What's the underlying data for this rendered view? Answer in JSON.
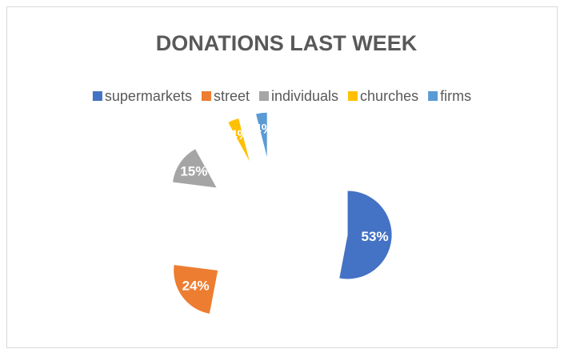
{
  "chart_data": {
    "type": "pie",
    "title": "DONATIONS LAST WEEK",
    "categories": [
      "supermarkets",
      "street",
      "individuals",
      "churches",
      "firms"
    ],
    "values": [
      53,
      24,
      15,
      4,
      4
    ],
    "value_labels": [
      "53%",
      "24%",
      "15%",
      "4%",
      "4%"
    ],
    "colors": [
      "#4472c4",
      "#ed7d31",
      "#a5a5a5",
      "#ffc000",
      "#5b9bd5"
    ],
    "legend": "top"
  }
}
